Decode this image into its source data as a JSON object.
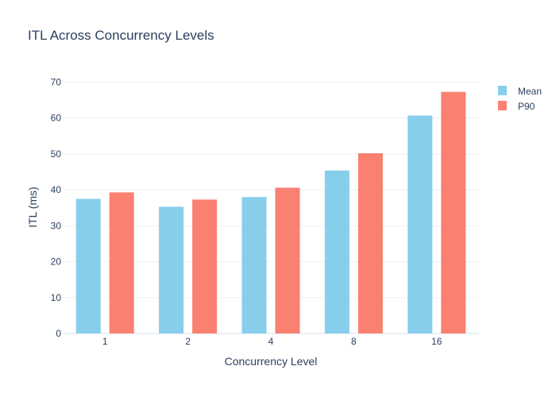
{
  "chart_data": {
    "type": "bar",
    "title": "ITL Across Concurrency Levels",
    "xlabel": "Concurrency Level",
    "ylabel": "ITL (ms)",
    "categories": [
      "1",
      "2",
      "4",
      "8",
      "16"
    ],
    "ylim": [
      0,
      70
    ],
    "yticks": [
      0,
      10,
      20,
      30,
      40,
      50,
      60,
      70
    ],
    "grid": true,
    "legend_position": "top-right",
    "series": [
      {
        "name": "Mean",
        "color": "#87ceeb",
        "values": [
          37.5,
          35.3,
          38.0,
          45.4,
          60.7
        ]
      },
      {
        "name": "P90",
        "color": "#fa8072",
        "values": [
          39.3,
          37.3,
          40.6,
          50.2,
          67.3
        ]
      }
    ]
  }
}
